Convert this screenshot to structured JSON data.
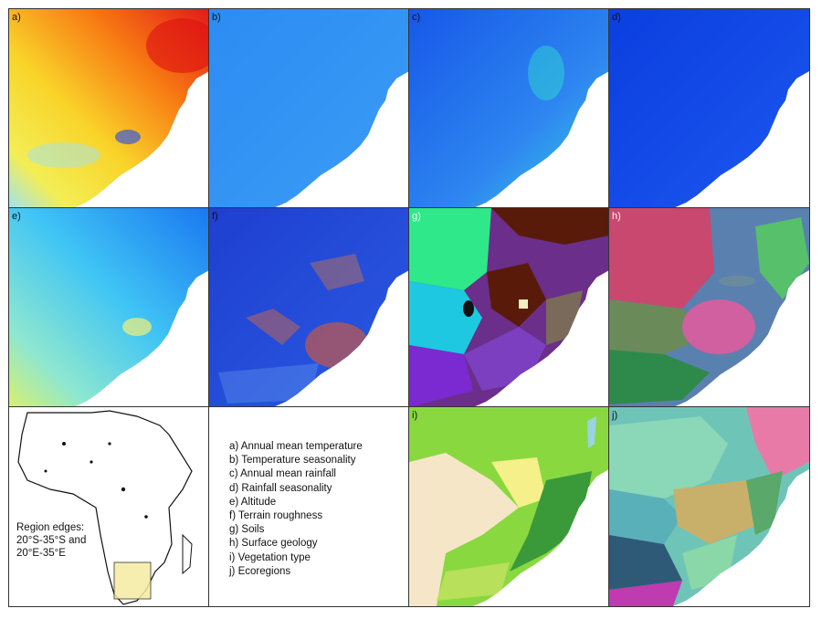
{
  "panels": [
    {
      "id": "a",
      "label": "a)"
    },
    {
      "id": "b",
      "label": "b)"
    },
    {
      "id": "c",
      "label": "c)"
    },
    {
      "id": "d",
      "label": "d)"
    },
    {
      "id": "e",
      "label": "e)"
    },
    {
      "id": "f",
      "label": "f)"
    },
    {
      "id": "g",
      "label": "g)"
    },
    {
      "id": "h",
      "label": "h)"
    },
    {
      "id": "i",
      "label": "i)"
    },
    {
      "id": "j",
      "label": "j)"
    }
  ],
  "legend": [
    "a) Annual mean temperature",
    "b) Temperature seasonality",
    "c) Annual mean rainfall",
    "d) Rainfall seasonality",
    "e) Altitude",
    "f) Terrain roughness",
    "g) Soils",
    "h) Surface geology",
    "i) Vegetation type",
    "j) Ecoregions"
  ],
  "inset": {
    "line1": "Region edges:",
    "line2": "20°S-35°S and",
    "line3": "20°E-35°E",
    "highlight_color": "#f5eba0"
  }
}
